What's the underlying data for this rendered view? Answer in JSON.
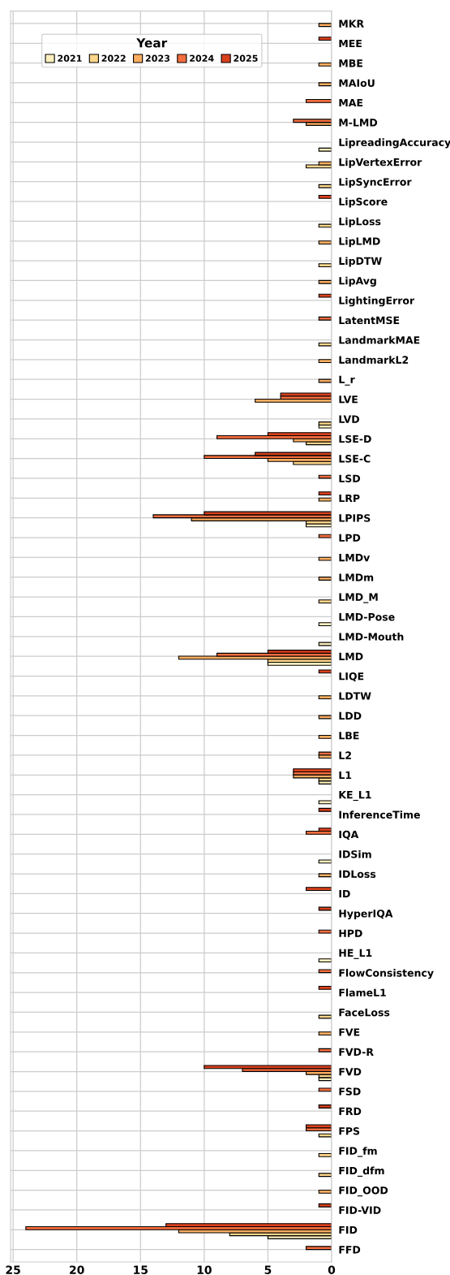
{
  "chart_data": {
    "type": "bar",
    "orientation": "horizontal",
    "categories": [
      "MKR",
      "MEE",
      "MBE",
      "MAIoU",
      "MAE",
      "M-LMD",
      "LipreadingAccuracy",
      "LipVertexError",
      "LipSyncError",
      "LipScore",
      "LipLoss",
      "LipLMD",
      "LipDTW",
      "LipAvg",
      "LightingError",
      "LatentMSE",
      "LandmarkMAE",
      "LandmarkL2",
      "L_r",
      "LVE",
      "LVD",
      "LSE-D",
      "LSE-C",
      "LSD",
      "LRP",
      "LPIPS",
      "LPD",
      "LMDv",
      "LMDm",
      "LMD_M",
      "LMD-Pose",
      "LMD-Mouth",
      "LMD",
      "LIQE",
      "LDTW",
      "LDD",
      "LBE",
      "L2",
      "L1",
      "KE_L1",
      "InferenceTime",
      "IQA",
      "IDSim",
      "IDLoss",
      "ID",
      "HyperIQA",
      "HPD",
      "HE_L1",
      "FlowConsistency",
      "FlameL1",
      "FaceLoss",
      "FVE",
      "FVD-R",
      "FVD",
      "FSD",
      "FRD",
      "FPS",
      "FID_fm",
      "FID_dfm",
      "FID_OOD",
      "FID-VID",
      "FID",
      "FFD"
    ],
    "series": [
      {
        "name": "2021",
        "color": "#feefbd",
        "values": [
          null,
          null,
          null,
          null,
          null,
          null,
          1,
          null,
          null,
          null,
          null,
          null,
          null,
          null,
          null,
          null,
          null,
          null,
          null,
          null,
          1,
          null,
          null,
          null,
          null,
          2,
          null,
          null,
          null,
          null,
          1,
          1,
          5,
          null,
          null,
          null,
          null,
          null,
          1,
          1,
          null,
          null,
          1,
          null,
          null,
          null,
          null,
          1,
          null,
          null,
          null,
          null,
          null,
          1,
          null,
          null,
          null,
          null,
          null,
          null,
          null,
          5,
          null
        ]
      },
      {
        "name": "2022",
        "color": "#fed68a",
        "values": [
          null,
          null,
          null,
          null,
          null,
          null,
          null,
          2,
          1,
          null,
          1,
          null,
          1,
          null,
          null,
          null,
          1,
          null,
          null,
          null,
          1,
          2,
          3,
          null,
          null,
          2,
          null,
          null,
          null,
          1,
          null,
          null,
          5,
          null,
          null,
          null,
          null,
          null,
          1,
          null,
          null,
          null,
          null,
          null,
          null,
          null,
          null,
          null,
          null,
          null,
          1,
          null,
          null,
          1,
          null,
          null,
          1,
          1,
          1,
          null,
          null,
          8,
          null
        ]
      },
      {
        "name": "2023",
        "color": "#fdae61",
        "values": [
          1,
          null,
          1,
          1,
          null,
          2,
          null,
          1,
          null,
          null,
          null,
          1,
          null,
          1,
          null,
          null,
          null,
          1,
          1,
          6,
          null,
          3,
          5,
          null,
          1,
          11,
          null,
          1,
          1,
          null,
          null,
          null,
          12,
          null,
          1,
          1,
          1,
          1,
          3,
          null,
          null,
          null,
          null,
          1,
          null,
          null,
          null,
          null,
          null,
          null,
          null,
          1,
          null,
          2,
          null,
          null,
          null,
          null,
          null,
          1,
          null,
          12,
          null
        ]
      },
      {
        "name": "2024",
        "color": "#f66d3e",
        "values": [
          null,
          null,
          null,
          null,
          2,
          3,
          null,
          null,
          null,
          null,
          null,
          null,
          null,
          null,
          null,
          1,
          null,
          null,
          null,
          4,
          null,
          9,
          10,
          1,
          null,
          14,
          1,
          null,
          null,
          null,
          null,
          null,
          9,
          null,
          null,
          null,
          null,
          1,
          3,
          null,
          null,
          2,
          null,
          null,
          null,
          null,
          1,
          null,
          1,
          null,
          null,
          null,
          1,
          7,
          1,
          null,
          2,
          null,
          null,
          null,
          null,
          24,
          2
        ]
      },
      {
        "name": "2025",
        "color": "#d9401c",
        "values": [
          null,
          1,
          null,
          null,
          null,
          null,
          null,
          null,
          null,
          1,
          null,
          null,
          null,
          null,
          1,
          null,
          null,
          null,
          null,
          4,
          null,
          5,
          6,
          null,
          1,
          10,
          null,
          null,
          null,
          null,
          null,
          null,
          5,
          1,
          null,
          null,
          null,
          null,
          3,
          null,
          1,
          1,
          null,
          null,
          2,
          1,
          null,
          null,
          null,
          1,
          null,
          null,
          null,
          10,
          null,
          1,
          2,
          null,
          null,
          null,
          1,
          13,
          null
        ]
      }
    ],
    "legend_title": "Year",
    "legend": "top",
    "xlim": [
      25.2,
      0
    ],
    "xticks": [
      0,
      5,
      10,
      15,
      20,
      25
    ],
    "grid": true
  }
}
